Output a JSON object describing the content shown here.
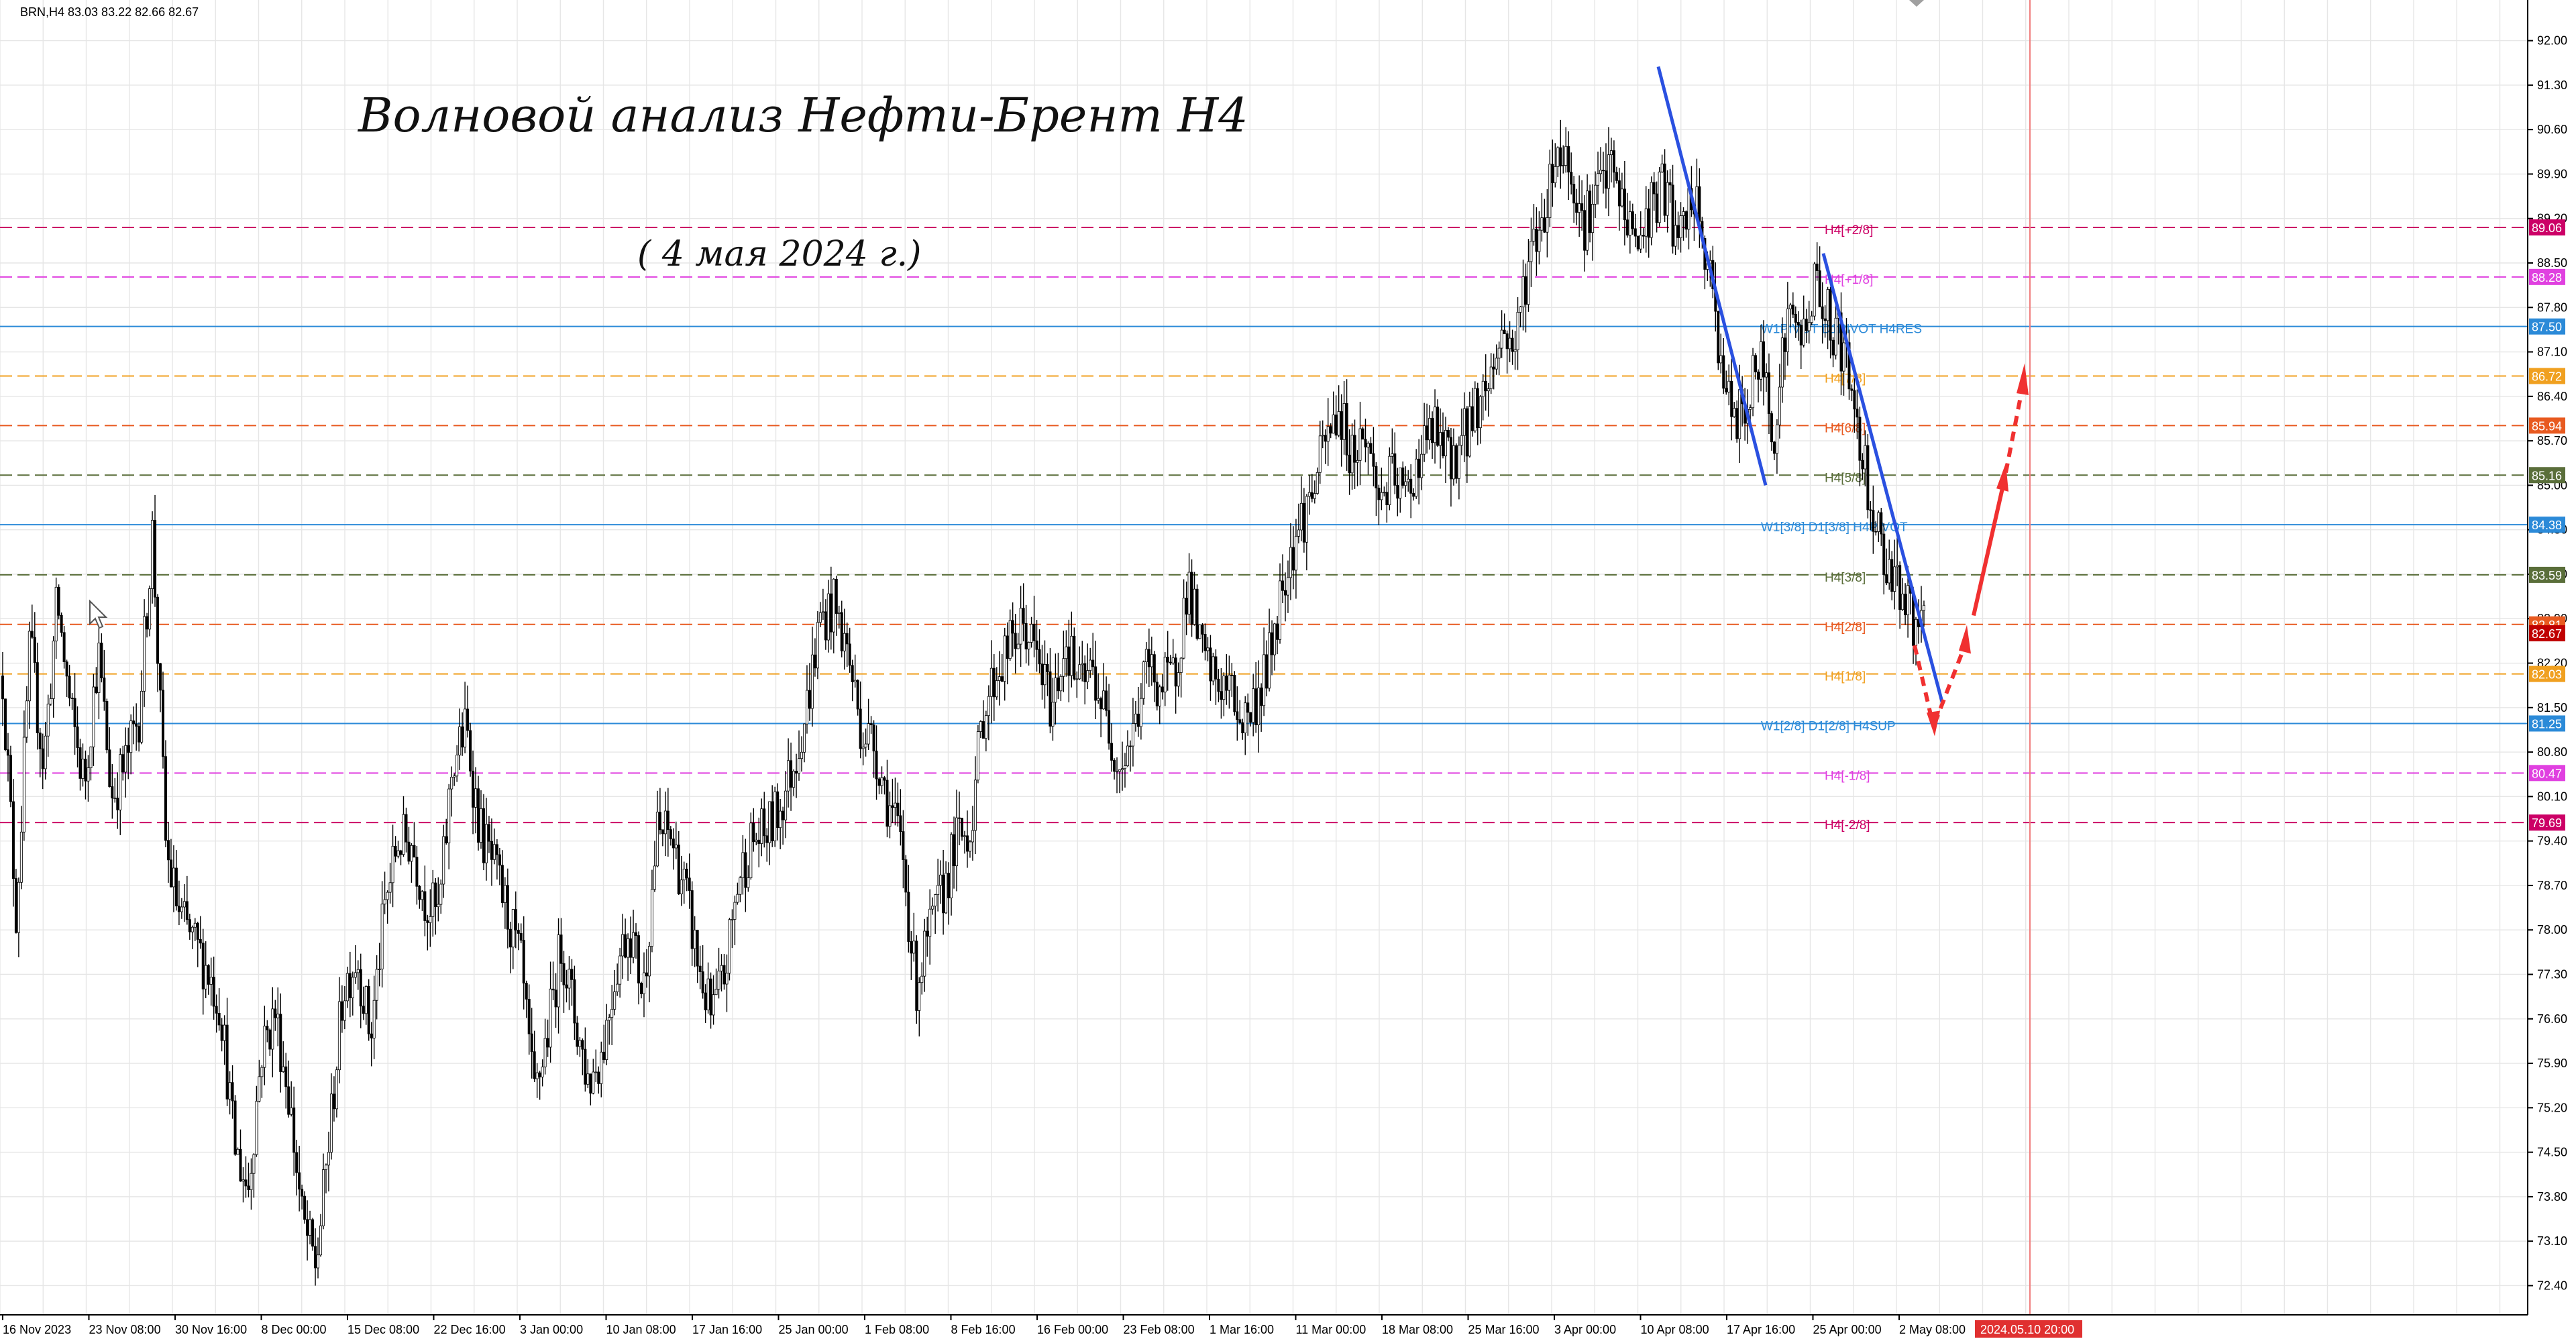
{
  "header": {
    "symbol_info": "BRN,H4  83.03 83.22 82.66 82.67",
    "title": "Волновой анализ Нефти-Брент H4",
    "date_note": "( 4 мая 2024 г.)"
  },
  "chart_data": {
    "type": "candlestick",
    "symbol": "BRN",
    "timeframe": "H4",
    "ohlc_last": {
      "open": 83.03,
      "high": 83.22,
      "low": 82.66,
      "close": 82.67
    },
    "ylim": [
      71.94,
      92.64
    ],
    "grid": true,
    "y_ticks": [
      "92.00",
      "91.30",
      "90.60",
      "89.90",
      "89.20",
      "88.50",
      "87.80",
      "87.10",
      "86.40",
      "85.70",
      "85.00",
      "84.30",
      "83.60",
      "82.90",
      "82.20",
      "81.50",
      "80.80",
      "80.10",
      "79.40",
      "78.70",
      "78.00",
      "77.30",
      "76.60",
      "75.90",
      "75.20",
      "74.50",
      "73.80",
      "73.10",
      "72.40"
    ],
    "x_ticks": [
      "16 Nov 2023",
      "23 Nov 08:00",
      "30 Nov 16:00",
      "8 Dec 00:00",
      "15 Dec 08:00",
      "22 Dec 16:00",
      "3 Jan 00:00",
      "10 Jan 08:00",
      "17 Jan 16:00",
      "25 Jan 00:00",
      "1 Feb 08:00",
      "8 Feb 16:00",
      "16 Feb 00:00",
      "23 Feb 08:00",
      "1 Mar 16:00",
      "11 Mar 00:00",
      "18 Mar 08:00",
      "25 Mar 16:00",
      "3 Apr 00:00",
      "10 Apr 08:00",
      "17 Apr 16:00",
      "25 Apr 00:00",
      "2 May 08:00"
    ],
    "cursor_time_label": "2024.05.10 20:00",
    "close_path": [
      [
        0,
        82.0
      ],
      [
        1,
        78.2
      ],
      [
        2,
        82.5
      ],
      [
        3,
        80.6
      ],
      [
        4,
        83.2
      ],
      [
        5,
        81.4
      ],
      [
        6,
        80.3
      ],
      [
        7,
        82.4
      ],
      [
        8,
        80.1
      ],
      [
        9,
        80.6
      ],
      [
        10,
        81.4
      ],
      [
        11,
        84.3
      ],
      [
        12,
        79.2
      ],
      [
        13,
        78.2
      ],
      [
        14,
        77.8
      ],
      [
        15,
        77.4
      ],
      [
        16,
        76.8
      ],
      [
        17,
        74.6
      ],
      [
        18,
        73.9
      ],
      [
        19,
        76.1
      ],
      [
        20,
        76.7
      ],
      [
        21,
        75.4
      ],
      [
        22,
        73.4
      ],
      [
        23,
        72.7
      ],
      [
        24,
        74.8
      ],
      [
        25,
        77.1
      ],
      [
        26,
        77.6
      ],
      [
        27,
        76.3
      ],
      [
        28,
        78.3
      ],
      [
        29,
        79.4
      ],
      [
        30,
        79.4
      ],
      [
        31,
        78.5
      ],
      [
        32,
        78.2
      ],
      [
        33,
        80.6
      ],
      [
        34,
        81.2
      ],
      [
        35,
        79.6
      ],
      [
        36,
        79.0
      ],
      [
        37,
        78.3
      ],
      [
        38,
        77.5
      ],
      [
        39,
        75.3
      ],
      [
        40,
        76.4
      ],
      [
        41,
        77.8
      ],
      [
        42,
        76.6
      ],
      [
        43,
        75.6
      ],
      [
        44,
        76.1
      ],
      [
        45,
        77.4
      ],
      [
        46,
        78.1
      ],
      [
        47,
        77.0
      ],
      [
        48,
        79.5
      ],
      [
        49,
        79.5
      ],
      [
        50,
        78.7
      ],
      [
        51,
        77.5
      ],
      [
        52,
        76.6
      ],
      [
        53,
        77.3
      ],
      [
        54,
        78.8
      ],
      [
        55,
        79.4
      ],
      [
        56,
        79.5
      ],
      [
        57,
        79.9
      ],
      [
        58,
        80.6
      ],
      [
        59,
        81.5
      ],
      [
        60,
        82.9
      ],
      [
        61,
        83.1
      ],
      [
        62,
        82.4
      ],
      [
        63,
        81.2
      ],
      [
        64,
        80.9
      ],
      [
        65,
        80.0
      ],
      [
        66,
        79.3
      ],
      [
        67,
        77.1
      ],
      [
        68,
        77.9
      ],
      [
        69,
        78.6
      ],
      [
        70,
        79.4
      ],
      [
        71,
        79.6
      ],
      [
        72,
        81.5
      ],
      [
        73,
        82.1
      ],
      [
        74,
        82.5
      ],
      [
        75,
        82.8
      ],
      [
        76,
        82.2
      ],
      [
        77,
        81.5
      ],
      [
        78,
        82.6
      ],
      [
        79,
        81.8
      ],
      [
        80,
        82.1
      ],
      [
        81,
        81.3
      ],
      [
        82,
        80.6
      ],
      [
        83,
        81.1
      ],
      [
        84,
        82.2
      ],
      [
        85,
        81.8
      ],
      [
        86,
        82.0
      ],
      [
        87,
        83.5
      ],
      [
        88,
        82.3
      ],
      [
        89,
        81.9
      ],
      [
        90,
        81.8
      ],
      [
        91,
        81.3
      ],
      [
        92,
        81.6
      ],
      [
        93,
        82.3
      ],
      [
        94,
        83.6
      ],
      [
        95,
        84.3
      ],
      [
        96,
        84.8
      ],
      [
        97,
        85.6
      ],
      [
        98,
        86.2
      ],
      [
        99,
        85.5
      ],
      [
        100,
        85.8
      ],
      [
        101,
        84.8
      ],
      [
        102,
        85.1
      ],
      [
        103,
        84.8
      ],
      [
        104,
        85.5
      ],
      [
        105,
        85.9
      ],
      [
        106,
        85.4
      ],
      [
        107,
        85.6
      ],
      [
        108,
        86.2
      ],
      [
        109,
        86.6
      ],
      [
        110,
        87.4
      ],
      [
        111,
        87.2
      ],
      [
        112,
        88.6
      ],
      [
        113,
        89.2
      ],
      [
        114,
        90.3
      ],
      [
        115,
        90.1
      ],
      [
        116,
        89.1
      ],
      [
        117,
        89.6
      ],
      [
        118,
        90.0
      ],
      [
        119,
        89.3
      ],
      [
        120,
        88.8
      ],
      [
        121,
        89.4
      ],
      [
        122,
        89.7
      ],
      [
        123,
        88.7
      ],
      [
        124,
        89.6
      ],
      [
        125,
        88.6
      ],
      [
        126,
        87.2
      ],
      [
        127,
        85.9
      ],
      [
        128,
        86.3
      ],
      [
        129,
        87.0
      ],
      [
        130,
        85.9
      ],
      [
        131,
        87.7
      ],
      [
        132,
        87.3
      ],
      [
        133,
        88.2
      ],
      [
        134,
        87.6
      ],
      [
        135,
        87.2
      ],
      [
        136,
        86.1
      ],
      [
        137,
        84.9
      ],
      [
        138,
        83.9
      ],
      [
        139,
        83.6
      ],
      [
        140,
        82.9
      ],
      [
        141,
        82.67
      ]
    ]
  },
  "levels": [
    {
      "value": 89.06,
      "tag": "89.06",
      "label": "H4[+2/8]",
      "color": "#cc0066",
      "style": "dash"
    },
    {
      "value": 88.28,
      "tag": "88.28",
      "label": "H4[+1/8]",
      "color": "#e040e0",
      "style": "dash"
    },
    {
      "value": 87.5,
      "tag": "87.50",
      "label": "W1PIVOT D1PIVOT H4RES",
      "color": "#2b8ad8",
      "style": "solid"
    },
    {
      "value": 86.72,
      "tag": "86.72",
      "label": "H4[7/8]",
      "color": "#f0a020",
      "style": "dash"
    },
    {
      "value": 85.94,
      "tag": "85.94",
      "label": "H4[6/8]",
      "color": "#e85a20",
      "style": "dash"
    },
    {
      "value": 85.16,
      "tag": "85.16",
      "label": "H4[5/8]",
      "color": "#5a6e3a",
      "style": "dash"
    },
    {
      "value": 84.38,
      "tag": "84.38",
      "label": "W1[3/8] D1[3/8] H4PIVOT",
      "color": "#2b8ad8",
      "style": "solid"
    },
    {
      "value": 83.59,
      "tag": "83.59",
      "label": "H4[3/8]",
      "color": "#5a6e3a",
      "style": "dash"
    },
    {
      "value": 82.81,
      "tag": "82.81",
      "label": "H4[2/8]",
      "color": "#e85a20",
      "style": "dash"
    },
    {
      "value": 82.03,
      "tag": "82.03",
      "label": "H4[1/8]",
      "color": "#f0a020",
      "style": "dash"
    },
    {
      "value": 81.25,
      "tag": "81.25",
      "label": "W1[2/8] D1[2/8] H4SUP",
      "color": "#2b8ad8",
      "style": "solid"
    },
    {
      "value": 80.47,
      "tag": "80.47",
      "label": "H4[-1/8]",
      "color": "#e040e0",
      "style": "dash"
    },
    {
      "value": 79.69,
      "tag": "79.69",
      "label": "H4[-2/8]",
      "color": "#cc0066",
      "style": "dash"
    }
  ],
  "current_price": {
    "value": 82.67,
    "tag": "82.67",
    "color": "#c00000"
  },
  "colors": {
    "trend_line": "#2a50e0",
    "forecast": "#f03030",
    "candle": "#000000",
    "grid": "#e6e6e6",
    "cursor_line": "#f08080",
    "cursor_tag": "#e03030"
  }
}
